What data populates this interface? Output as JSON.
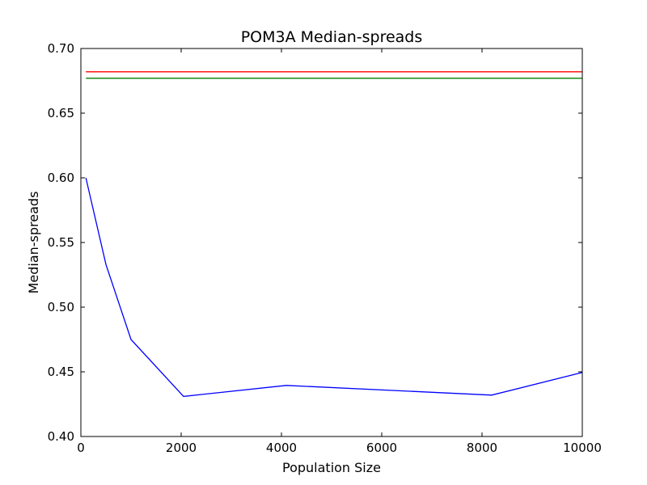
{
  "chart_data": {
    "type": "line",
    "title": "POM3A Median-spreads",
    "xlabel": "Population Size",
    "ylabel": "Median-spreads",
    "xlim": [
      0,
      10000
    ],
    "ylim": [
      0.4,
      0.7
    ],
    "xticks": [
      "0",
      "2000",
      "4000",
      "6000",
      "8000",
      "10000"
    ],
    "yticks": [
      "0.40",
      "0.45",
      "0.50",
      "0.55",
      "0.60",
      "0.65",
      "0.70"
    ],
    "grid": false,
    "legend": "none",
    "series": [
      {
        "color": "#0000ff",
        "x": [
          100,
          500,
          1000,
          2048,
          4096,
          8192,
          10000
        ],
        "y": [
          0.6,
          0.533,
          0.475,
          0.431,
          0.4395,
          0.432,
          0.4495
        ]
      },
      {
        "color": "#ff0000",
        "x": [
          100,
          10000
        ],
        "y": [
          0.682,
          0.682
        ]
      },
      {
        "color": "#008000",
        "x": [
          100,
          10000
        ],
        "y": [
          0.677,
          0.677
        ]
      }
    ]
  }
}
